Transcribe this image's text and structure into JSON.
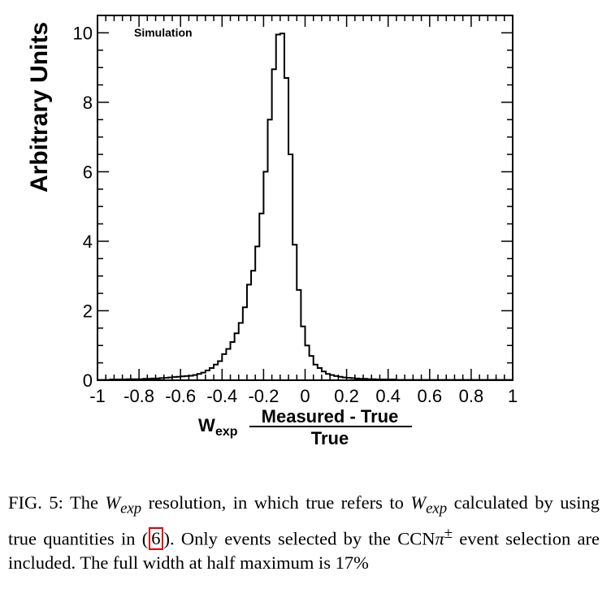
{
  "chart_data": {
    "type": "histogram",
    "annotation": "Simulation",
    "ylabel": "Arbitrary Units",
    "xlabel": {
      "variable": "W",
      "subscript": "exp",
      "numerator": "Measured - True",
      "denominator": "True"
    },
    "xlim": [
      -1,
      1
    ],
    "ylim": [
      0,
      10.5
    ],
    "x_ticks": [
      "-1",
      "-0.8",
      "-0.6",
      "-0.4",
      "-0.2",
      "0",
      "0.2",
      "0.4",
      "0.6",
      "0.8",
      "1"
    ],
    "y_ticks": [
      "0",
      "2",
      "4",
      "6",
      "8",
      "10"
    ],
    "bin_width": 0.02,
    "bins_start": -1.0,
    "values": [
      0.01,
      0.01,
      0.01,
      0.02,
      0.02,
      0.02,
      0.02,
      0.03,
      0.03,
      0.03,
      0.03,
      0.04,
      0.04,
      0.05,
      0.05,
      0.06,
      0.07,
      0.08,
      0.09,
      0.1,
      0.11,
      0.12,
      0.13,
      0.15,
      0.18,
      0.22,
      0.28,
      0.35,
      0.45,
      0.55,
      0.75,
      0.9,
      1.1,
      1.35,
      1.65,
      2.1,
      2.75,
      3.15,
      3.85,
      4.8,
      6.0,
      7.5,
      8.95,
      9.95,
      9.98,
      8.7,
      6.5,
      3.9,
      2.6,
      1.55,
      1.0,
      0.7,
      0.45,
      0.35,
      0.25,
      0.18,
      0.15,
      0.12,
      0.1,
      0.08,
      0.07,
      0.06,
      0.05,
      0.04,
      0.04,
      0.03,
      0.03,
      0.02,
      0.02,
      0.02,
      0.02,
      0.02,
      0.01,
      0.01,
      0.01,
      0.01,
      0.01,
      0.01,
      0.01,
      0.01,
      0.01,
      0.01,
      0.01,
      0.01,
      0.01,
      0.01,
      0.01,
      0.01,
      0.01,
      0.01,
      0.01,
      0.01,
      0.01,
      0.01,
      0.01,
      0.01,
      0.01,
      0.01,
      0.01,
      0.01
    ]
  },
  "caption": {
    "fig_label": "FIG. 5:",
    "text1": " The ",
    "math1": "W",
    "math1_sub": "exp",
    "text2": " resolution, in which true refers to ",
    "math2": "W",
    "math2_sub": "exp",
    "text3": " cal­culated by using true quantities in ",
    "ref_open": "(",
    "ref": "6",
    "ref_close": ")",
    "text4": ". Only events selected by the CCN",
    "pi": "π",
    "pm": "±",
    "text5": " event selection are included. The full width at half maximum is 17%"
  }
}
